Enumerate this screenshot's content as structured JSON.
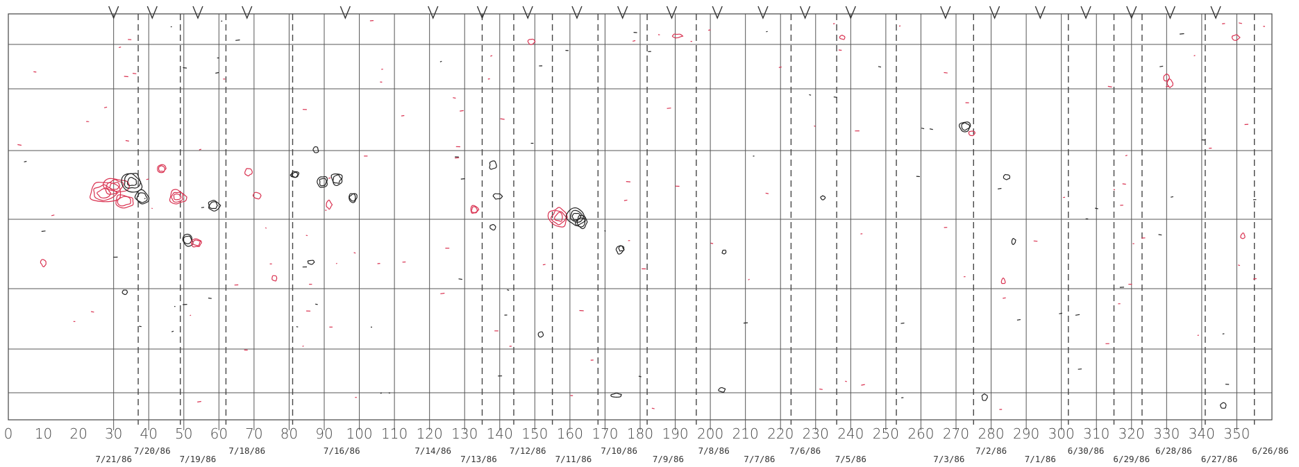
{
  "chart_data": {
    "type": "contour-map",
    "x_ticks": [
      0,
      10,
      20,
      30,
      40,
      50,
      60,
      70,
      80,
      90,
      100,
      110,
      120,
      130,
      140,
      150,
      160,
      170,
      180,
      190,
      200,
      210,
      220,
      230,
      240,
      250,
      260,
      270,
      280,
      290,
      300,
      310,
      320,
      330,
      340,
      350
    ],
    "xlim": [
      0,
      360
    ],
    "date_labels": [
      {
        "x": 30,
        "text": "7/21/86",
        "row": 2
      },
      {
        "x": 41,
        "text": "7/20/86",
        "row": 1
      },
      {
        "x": 54,
        "text": "7/19/86",
        "row": 2
      },
      {
        "x": 68,
        "text": "7/18/86",
        "row": 1
      },
      {
        "x": 95,
        "text": "7/16/86",
        "row": 1
      },
      {
        "x": 121,
        "text": "7/14/86",
        "row": 1
      },
      {
        "x": 134,
        "text": "7/13/86",
        "row": 2
      },
      {
        "x": 148,
        "text": "7/12/86",
        "row": 1
      },
      {
        "x": 161,
        "text": "7/11/86",
        "row": 2
      },
      {
        "x": 174,
        "text": "7/10/86",
        "row": 1
      },
      {
        "x": 188,
        "text": "7/9/86",
        "row": 2
      },
      {
        "x": 201,
        "text": "7/8/86",
        "row": 1
      },
      {
        "x": 214,
        "text": "7/7/86",
        "row": 2
      },
      {
        "x": 227,
        "text": "7/6/86",
        "row": 1
      },
      {
        "x": 240,
        "text": "7/5/86",
        "row": 2
      },
      {
        "x": 268,
        "text": "7/3/86",
        "row": 2
      },
      {
        "x": 280,
        "text": "7/2/86",
        "row": 1
      },
      {
        "x": 294,
        "text": "7/1/86",
        "row": 2
      },
      {
        "x": 307,
        "text": "6/30/86",
        "row": 1
      },
      {
        "x": 320,
        "text": "6/29/86",
        "row": 2
      },
      {
        "x": 332,
        "text": "6/28/86",
        "row": 1
      },
      {
        "x": 345,
        "text": "6/27/86",
        "row": 2
      },
      {
        "x": 358,
        "text": "6/26/86",
        "row": 1
      }
    ],
    "v_marks": [
      30,
      41,
      54,
      68,
      96,
      121,
      135,
      148,
      162,
      175,
      189,
      202,
      215,
      227,
      240,
      267,
      281,
      294,
      307,
      320,
      331,
      344
    ],
    "solid_lines": [
      30,
      40,
      50,
      60,
      70,
      80,
      90,
      100,
      110,
      120,
      130,
      140,
      150,
      160,
      170,
      180,
      190,
      200,
      210,
      220,
      230,
      240,
      250,
      260,
      270,
      280,
      290,
      300,
      310,
      320,
      330,
      340,
      350
    ],
    "dashed_lines": [
      37,
      49,
      62,
      81,
      135,
      144,
      155,
      168,
      182,
      196,
      223,
      236,
      253,
      275,
      302,
      315,
      323,
      341,
      355
    ],
    "contour_colors": {
      "negative": "#222222",
      "positive": "#d9304f"
    }
  }
}
